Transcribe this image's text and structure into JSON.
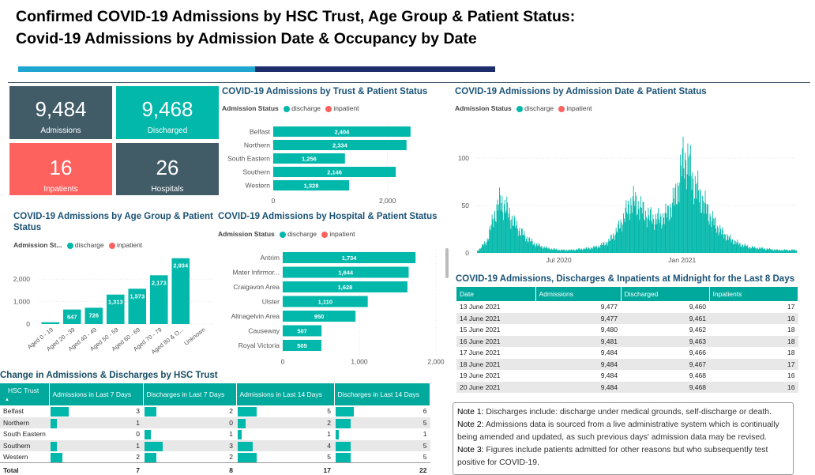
{
  "header": {
    "title_line1": "Confirmed COVID-19 Admissions by HSC Trust, Age Group & Patient Status:",
    "title_line2": "Covid-19 Admissions by Admission Date & Occupancy by Date"
  },
  "colors": {
    "discharge": "#01b8aa",
    "inpatient": "#fd625e",
    "kpi_dark": "#415b67",
    "kpi_teal": "#01b8aa",
    "kpi_red": "#fd625e",
    "table_header": "#01a99d",
    "accent_light": "#1fa6d0",
    "accent_dark": "#1d2d6b"
  },
  "kpis": [
    {
      "value": "9,484",
      "label": "Admissions"
    },
    {
      "value": "9,468",
      "label": "Discharged"
    },
    {
      "value": "16",
      "label": "Inpatients"
    },
    {
      "value": "26",
      "label": "Hospitals"
    }
  ],
  "legend": {
    "prefix": "Admission Status",
    "prefix_short": "Admission St...",
    "discharge": "discharge",
    "inpatient": "inpatient"
  },
  "chart_data": [
    {
      "id": "trust",
      "type": "bar",
      "orientation": "horizontal",
      "title": "COVID-19 Admissions by Trust & Patient Status",
      "categories": [
        "Belfast",
        "Northern",
        "South Eastern",
        "Southern",
        "Western"
      ],
      "series": [
        {
          "name": "discharge",
          "values": [
            2404,
            2334,
            1256,
            2146,
            1328
          ]
        }
      ],
      "data_labels": [
        "2,404",
        "2,334",
        "1,256",
        "2,146",
        "1,328"
      ],
      "xlim": [
        0,
        2600
      ],
      "x_ticks": [
        "0",
        "2,000"
      ],
      "x_tick_values": [
        0,
        2000
      ]
    },
    {
      "id": "age",
      "type": "bar",
      "orientation": "vertical",
      "title": "COVID-19 Admissions by Age Group & Patient Status",
      "categories": [
        "Aged 0 - 19",
        "Aged 20 - 39",
        "Aged 40 - 49",
        "Aged 50 - 59",
        "Aged 60 - 69",
        "Aged 70 - 79",
        "Aged 80 & O...",
        "Unknown"
      ],
      "series": [
        {
          "name": "discharge",
          "values": [
            80,
            647,
            726,
            1313,
            1573,
            2173,
            2934,
            0
          ]
        }
      ],
      "data_labels": [
        "",
        "647",
        "726",
        "1,313",
        "1,573",
        "2,173",
        "2,934",
        ""
      ],
      "ylim": [
        0,
        3100
      ],
      "y_ticks": [
        "0",
        "1,000",
        "2,000"
      ],
      "y_tick_values": [
        0,
        1000,
        2000
      ]
    },
    {
      "id": "hospital",
      "type": "bar",
      "orientation": "horizontal",
      "title": "COVID-19 Admissions by Hospital & Patient Status",
      "categories": [
        "Antrim",
        "Mater Infirmor...",
        "Craigavon Area",
        "Ulster",
        "Altnagelvin Area",
        "Causeway",
        "Royal Victoria"
      ],
      "series": [
        {
          "name": "discharge",
          "values": [
            1734,
            1644,
            1628,
            1110,
            950,
            507,
            505
          ]
        }
      ],
      "data_labels": [
        "1,734",
        "1,644",
        "1,628",
        "1,110",
        "950",
        "507",
        "505"
      ],
      "xlim": [
        0,
        2000
      ],
      "x_ticks": [
        "0",
        "1,000",
        "2,000"
      ],
      "x_tick_values": [
        0,
        1000,
        2000
      ]
    },
    {
      "id": "date",
      "type": "bar",
      "orientation": "vertical",
      "title": "COVID-19 Admissions by Admission Date & Patient Status",
      "x_ticks": [
        "Jul 2020",
        "Jan 2021"
      ],
      "y_ticks": [
        "0",
        "50",
        "100"
      ],
      "y_tick_values": [
        0,
        50,
        100
      ],
      "ylim": [
        0,
        115
      ],
      "x_range": [
        "2020-03-01",
        "2021-06-20"
      ],
      "x_tick_dates": [
        "2020-07-01",
        "2021-01-01"
      ],
      "series": [
        {
          "name": "discharge",
          "weekly_points": [
            [
              "2020-03-01",
              2
            ],
            [
              "2020-03-15",
              12
            ],
            [
              "2020-03-29",
              45
            ],
            [
              "2020-04-05",
              55
            ],
            [
              "2020-04-12",
              48
            ],
            [
              "2020-04-26",
              30
            ],
            [
              "2020-05-10",
              18
            ],
            [
              "2020-05-24",
              10
            ],
            [
              "2020-06-07",
              6
            ],
            [
              "2020-06-21",
              4
            ],
            [
              "2020-07-05",
              3
            ],
            [
              "2020-07-19",
              3
            ],
            [
              "2020-08-02",
              4
            ],
            [
              "2020-08-16",
              5
            ],
            [
              "2020-08-30",
              7
            ],
            [
              "2020-09-13",
              12
            ],
            [
              "2020-09-27",
              25
            ],
            [
              "2020-10-11",
              45
            ],
            [
              "2020-10-18",
              55
            ],
            [
              "2020-10-25",
              52
            ],
            [
              "2020-11-08",
              40
            ],
            [
              "2020-11-22",
              35
            ],
            [
              "2020-12-06",
              38
            ],
            [
              "2020-12-20",
              55
            ],
            [
              "2020-12-27",
              75
            ],
            [
              "2021-01-03",
              100
            ],
            [
              "2021-01-10",
              95
            ],
            [
              "2021-01-17",
              75
            ],
            [
              "2021-01-31",
              55
            ],
            [
              "2021-02-14",
              35
            ],
            [
              "2021-02-28",
              22
            ],
            [
              "2021-03-14",
              14
            ],
            [
              "2021-03-28",
              9
            ],
            [
              "2021-04-11",
              6
            ],
            [
              "2021-04-25",
              5
            ],
            [
              "2021-05-09",
              4
            ],
            [
              "2021-05-23",
              3
            ],
            [
              "2021-06-06",
              3
            ],
            [
              "2021-06-20",
              3
            ]
          ]
        }
      ]
    }
  ],
  "occupancy": {
    "title": "COVID-19 Admissions, Discharges & Inpatients at Midnight for the Last 8 Days",
    "columns": [
      "Date",
      "Admissions",
      "Discharged",
      "Inpatients"
    ],
    "rows": [
      [
        "13 June 2021",
        "9,477",
        "9,460",
        "17"
      ],
      [
        "14 June 2021",
        "9,477",
        "9,461",
        "16"
      ],
      [
        "15 June 2021",
        "9,480",
        "9,462",
        "18"
      ],
      [
        "16 June 2021",
        "9,481",
        "9,463",
        "18"
      ],
      [
        "17 June 2021",
        "9,484",
        "9,466",
        "18"
      ],
      [
        "18 June 2021",
        "9,484",
        "9,467",
        "17"
      ],
      [
        "19 June 2021",
        "9,484",
        "9,468",
        "16"
      ],
      [
        "20 June 2021",
        "9,484",
        "9,468",
        "16"
      ]
    ]
  },
  "change_table": {
    "title": "Change in Admissions & Discharges by HSC Trust",
    "columns": [
      "HSC Trust",
      "Admissions in Last 7 Days",
      "Discharges in Last 7 Days",
      "Admissions in Last 14 Days",
      "Discharges in Last 14 Days"
    ],
    "rows": [
      {
        "trust": "Belfast",
        "values": [
          3,
          2,
          5,
          6
        ]
      },
      {
        "trust": "Northern",
        "values": [
          1,
          0,
          2,
          5
        ]
      },
      {
        "trust": "South Eastern",
        "values": [
          0,
          1,
          1,
          1
        ]
      },
      {
        "trust": "Southern",
        "values": [
          1,
          3,
          4,
          5
        ]
      },
      {
        "trust": "Western",
        "values": [
          2,
          2,
          5,
          5
        ]
      }
    ],
    "total_label": "Total",
    "totals": [
      "7",
      "8",
      "17",
      "22"
    ]
  },
  "notes": [
    {
      "label": "Note 1:",
      "text": " Discharges include: discharge under medical grounds, self-discharge or death."
    },
    {
      "label": "Note 2:",
      "text": " Admissions data is sourced from a live administrative system which is continually being amended and updated, as such previous days' admission data may be revised."
    },
    {
      "label": "Note 3:",
      "text": " Figures include patients admitted for other reasons but who subsequently test positive for COVID-19."
    }
  ]
}
